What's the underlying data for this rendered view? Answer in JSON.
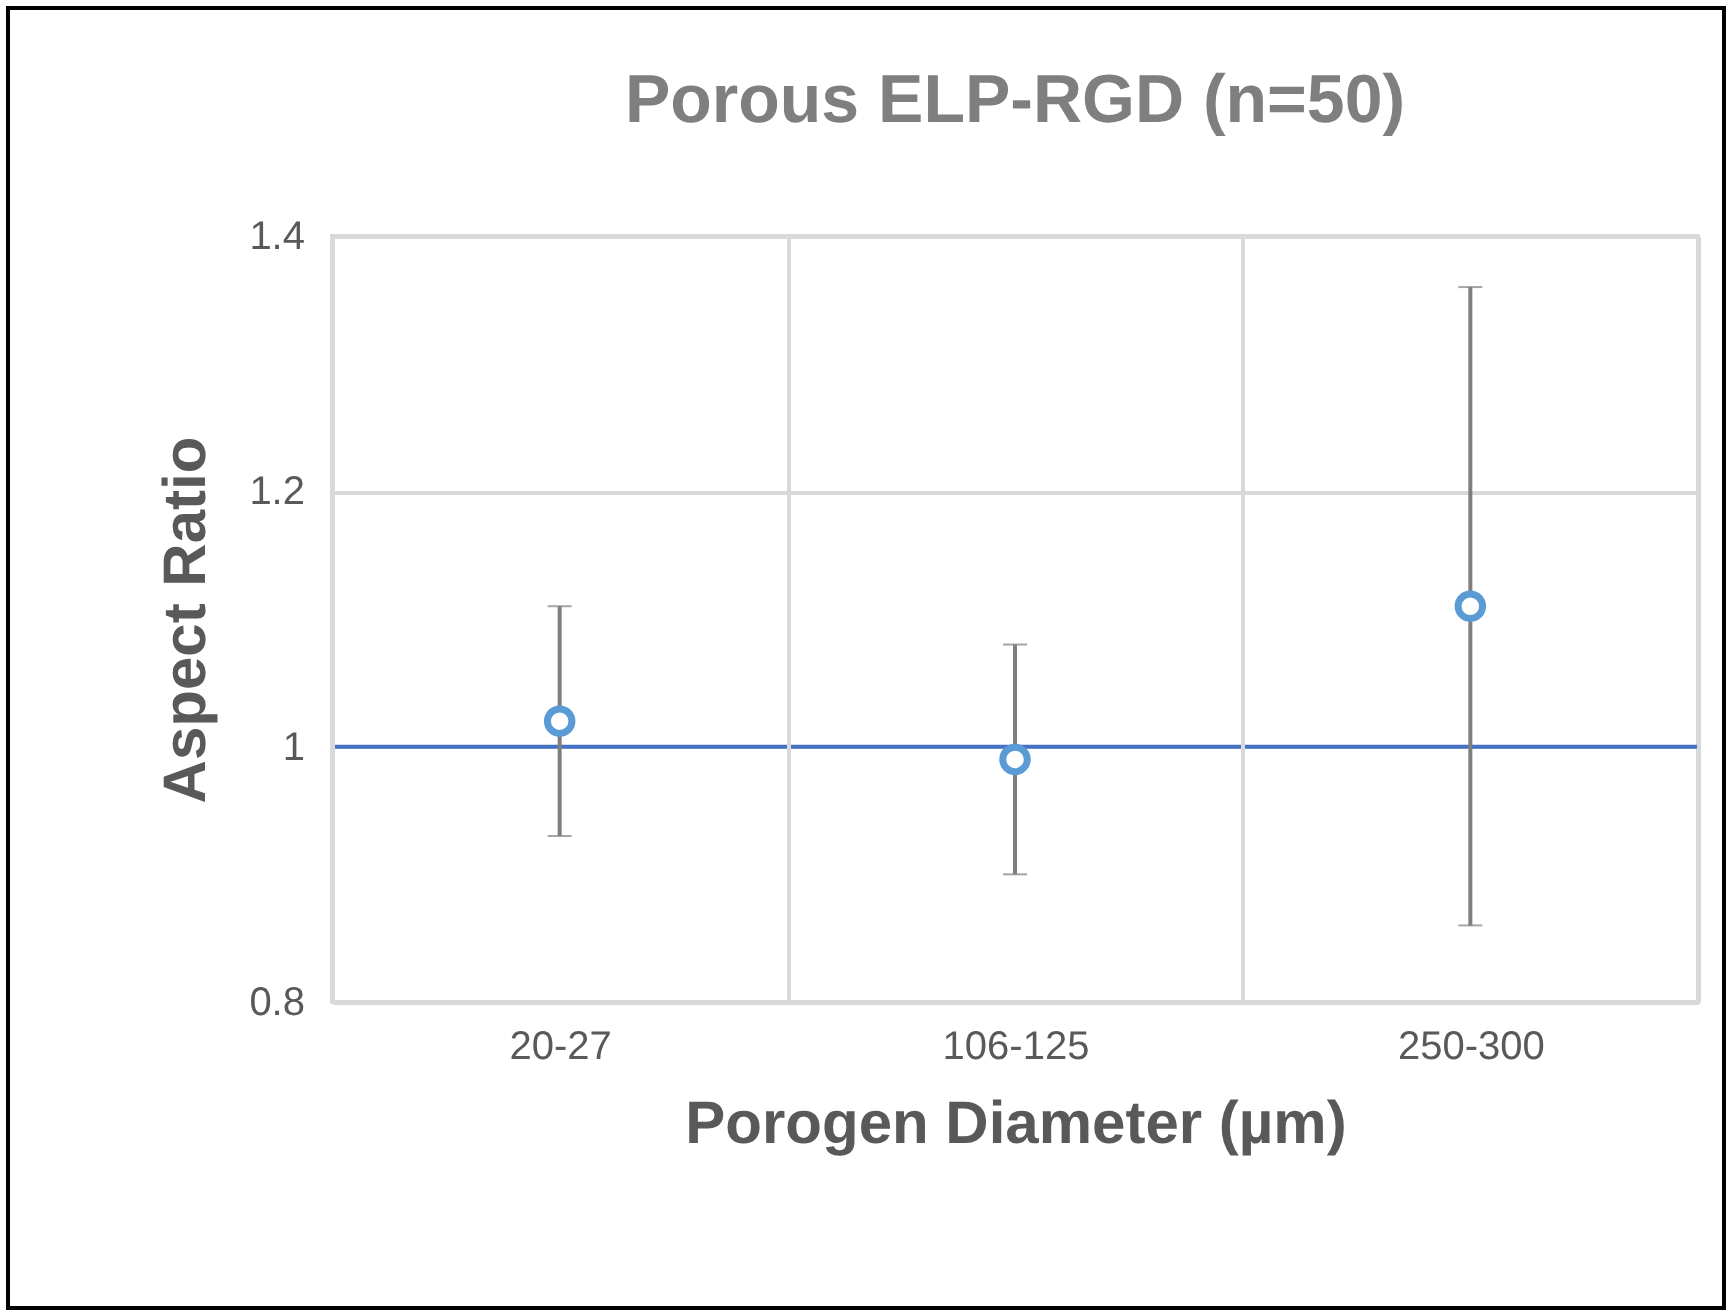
{
  "chart_data": {
    "type": "scatter",
    "title": "Porous ELP-RGD (n=50)",
    "xlabel": "Porogen Diameter (µm)",
    "ylabel": "Aspect Ratio",
    "categories": [
      "20-27",
      "106-125",
      "250-300"
    ],
    "series": [
      {
        "color": "#5b9bd5",
        "values": [
          1.02,
          0.99,
          1.11
        ],
        "errors": [
          [
            0.93,
            1.11
          ],
          [
            0.9,
            1.08
          ],
          [
            0.86,
            1.36
          ]
        ]
      }
    ],
    "ylim": [
      0.8,
      1.4
    ],
    "yticks": [
      0.8,
      1,
      1.2,
      1.4
    ],
    "grid": true,
    "marker": "circle",
    "ref_lines": [
      {
        "axis": "y",
        "value": 1,
        "color": "#4472c4"
      }
    ]
  }
}
